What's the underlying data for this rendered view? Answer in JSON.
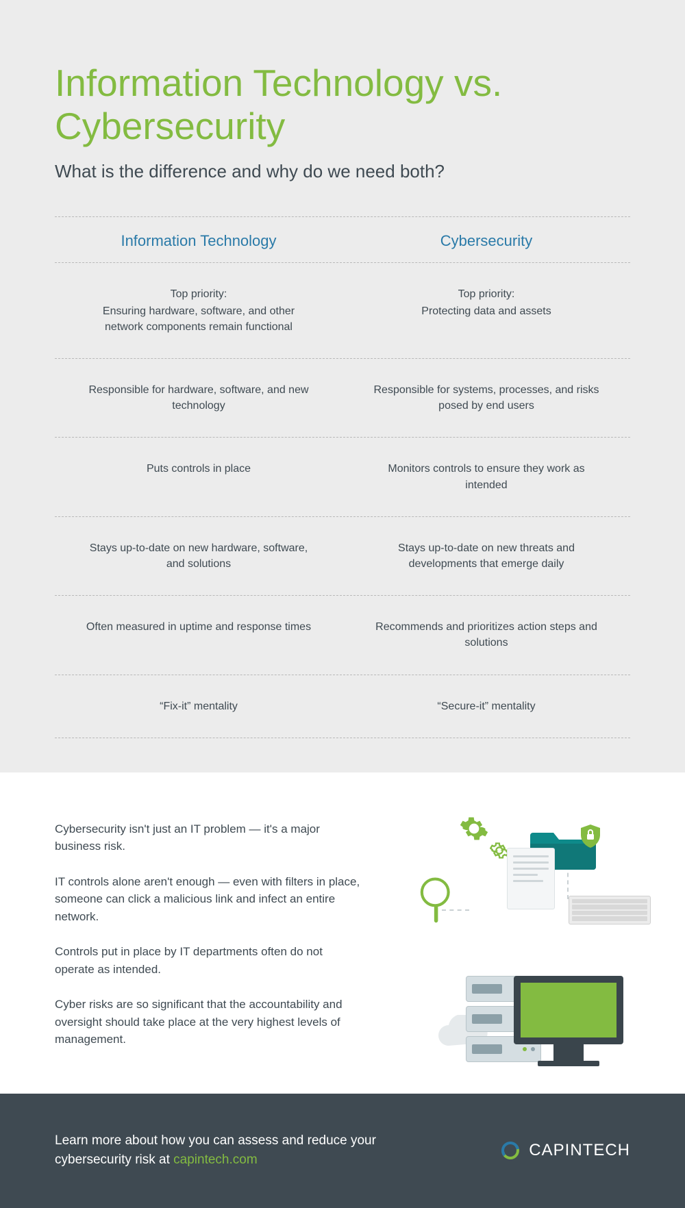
{
  "colors": {
    "green": "#83bb41",
    "blue": "#2a7aa8",
    "teal": "#0e8a8a",
    "dark": "#3f4a52",
    "bg_grey": "#ececec",
    "divider": "#b8b8b8"
  },
  "header": {
    "title": "Information Technology vs. Cybersecurity",
    "subtitle": "What is the difference and why do we need both?"
  },
  "compare": {
    "left_heading": "Information Technology",
    "right_heading": "Cybersecurity",
    "rows": [
      {
        "left_label": "Top priority:",
        "left": "Ensuring hardware, software, and other network components remain functional",
        "right_label": "Top priority:",
        "right": "Protecting data and assets"
      },
      {
        "left": "Responsible for hardware, software, and new technology",
        "right": "Responsible for systems, processes, and risks posed by end users"
      },
      {
        "left": "Puts controls in place",
        "right": "Monitors controls to ensure they work as intended"
      },
      {
        "left": "Stays up-to-date on new hardware, software, and solutions",
        "right": "Stays up-to-date on new threats and developments that emerge daily"
      },
      {
        "left": "Often measured in uptime and response times",
        "right": "Recommends and prioritizes action steps and solutions"
      },
      {
        "left": "“Fix-it” mentality",
        "right": "“Secure-it” mentality"
      }
    ]
  },
  "mid": {
    "p1": "Cybersecurity isn't just an IT problem — it's a major business risk.",
    "p2": "IT controls alone aren't enough — even with filters in place, someone can click a malicious link and infect an entire network.",
    "p3": "Controls put in place by IT departments often do not operate as intended.",
    "p4": "Cyber risks are so significant that the accountability and oversight should take place at the very highest levels of management."
  },
  "footer": {
    "text_prefix": "Learn more about how you can assess and reduce your cybersecurity risk at ",
    "link": "capintech.com",
    "logo_part1": "CAPIN",
    "logo_part2": "TECH"
  }
}
